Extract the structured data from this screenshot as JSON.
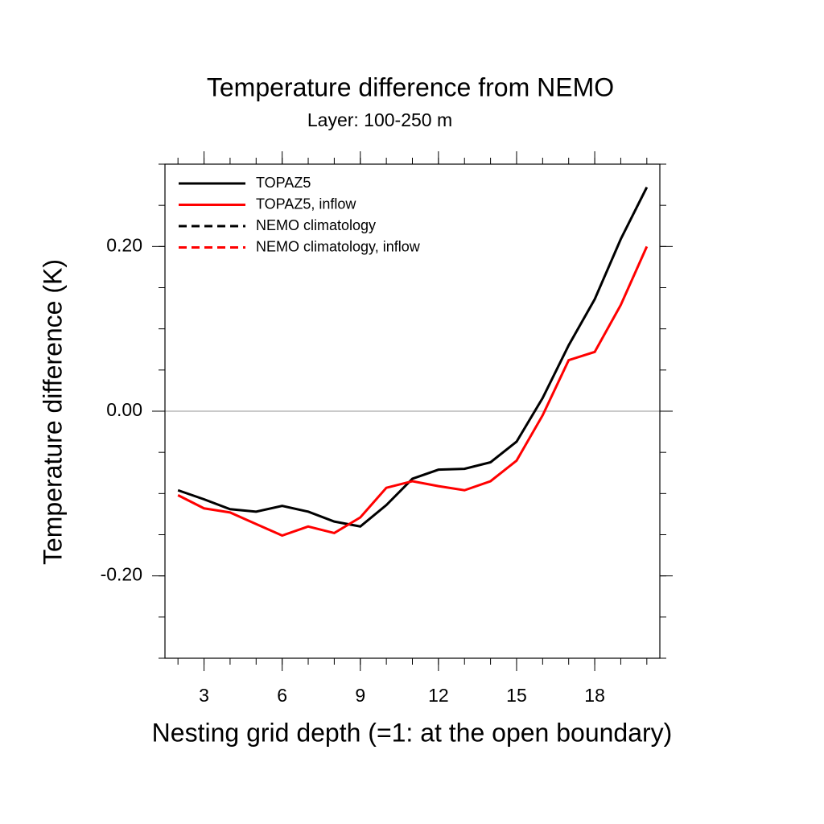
{
  "chart_data": {
    "type": "line",
    "title": "Temperature difference from NEMO",
    "subtitle": "Layer: 100-250 m",
    "xlabel": "Nesting grid depth (=1: at the open boundary)",
    "ylabel": "Temperature difference (K)",
    "x": [
      2,
      3,
      4,
      5,
      6,
      7,
      8,
      9,
      10,
      11,
      12,
      13,
      14,
      15,
      16,
      17,
      18,
      19,
      20
    ],
    "series": [
      {
        "name": "TOPAZ5",
        "color": "#000000",
        "dash": false,
        "values": [
          -0.096,
          -0.107,
          -0.119,
          -0.122,
          -0.115,
          -0.122,
          -0.134,
          -0.14,
          -0.114,
          -0.082,
          -0.071,
          -0.07,
          -0.062,
          -0.037,
          0.016,
          0.08,
          0.136,
          0.209,
          0.272
        ]
      },
      {
        "name": "TOPAZ5, inflow",
        "color": "#ff0000",
        "dash": false,
        "values": [
          -0.102,
          -0.118,
          -0.123,
          -0.137,
          -0.151,
          -0.14,
          -0.148,
          -0.129,
          -0.093,
          -0.085,
          -0.091,
          -0.096,
          -0.085,
          -0.06,
          -0.005,
          0.062,
          0.072,
          0.129,
          0.2
        ]
      },
      {
        "name": "NEMO climatology",
        "color": "#000000",
        "dash": true,
        "values": [
          null,
          null,
          null,
          null,
          null,
          null,
          null,
          null,
          null,
          null,
          null,
          null,
          null,
          null,
          null,
          null,
          null,
          null,
          null
        ]
      },
      {
        "name": "NEMO climatology, inflow",
        "color": "#ff0000",
        "dash": true,
        "values": [
          null,
          null,
          null,
          null,
          null,
          null,
          null,
          null,
          null,
          null,
          null,
          null,
          null,
          null,
          null,
          null,
          null,
          null,
          null
        ]
      }
    ],
    "xlim": [
      1.5,
      20.5
    ],
    "xticks": [
      3,
      6,
      9,
      12,
      15,
      18
    ],
    "xminor": 1,
    "ylim": [
      -0.3,
      0.3
    ],
    "yticks": [
      {
        "value": 0.2,
        "label": "0.20"
      },
      {
        "value": 0,
        "label": "0.00"
      },
      {
        "value": -0.2,
        "label": "-0.20"
      }
    ],
    "yminor": 0.05,
    "hline": 0,
    "legend": "upper left"
  }
}
